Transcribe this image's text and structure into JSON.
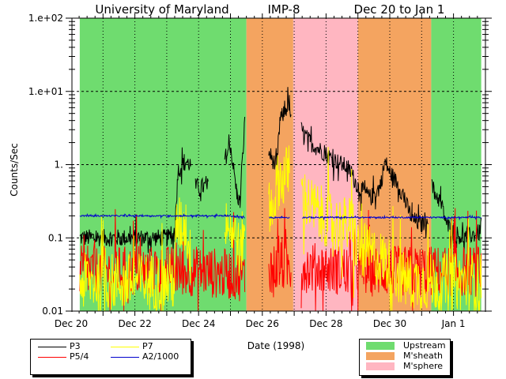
{
  "chart_data": {
    "type": "line",
    "title_parts": [
      "University of Maryland",
      "IMP-8",
      "Dec 20 to Jan 1"
    ],
    "xlabel": "Date (1998)",
    "ylabel": "Counts/Sec",
    "yscale": "log",
    "ylim": [
      0.01,
      100
    ],
    "y_tick_labels": [
      {
        "value": 100,
        "label": "1.e+02"
      },
      {
        "value": 10,
        "label": "1.e+01"
      },
      {
        "value": 1,
        "label": "1."
      },
      {
        "value": 0.1,
        "label": "0.1"
      },
      {
        "value": 0.01,
        "label": "0.01"
      }
    ],
    "xlim_days_from_dec20": [
      0,
      12.97
    ],
    "x_tick_labels": [
      {
        "day": 0,
        "label": "Dec 20"
      },
      {
        "day": 2,
        "label": "Dec 22"
      },
      {
        "day": 4,
        "label": "Dec 24"
      },
      {
        "day": 6,
        "label": "Dec 26"
      },
      {
        "day": 8,
        "label": "Dec 28"
      },
      {
        "day": 10,
        "label": "Dec 30"
      },
      {
        "day": 12,
        "label": "Jan 1"
      }
    ],
    "grid": true,
    "regions": [
      {
        "name": "Upstream",
        "start": 0.27,
        "end": 5.5,
        "color": "#6fdc6f"
      },
      {
        "name": "M'sheath",
        "start": 5.5,
        "end": 6.97,
        "color": "#f4a460"
      },
      {
        "name": "M'sphere",
        "start": 6.97,
        "end": 9.0,
        "color": "#ffb6c1"
      },
      {
        "name": "M'sheath",
        "start": 9.0,
        "end": 11.3,
        "color": "#f4a460"
      },
      {
        "name": "Upstream",
        "start": 11.3,
        "end": 12.87,
        "color": "#6fdc6f"
      }
    ],
    "region_legend": [
      {
        "label": "Upstream",
        "color": "#6fdc6f"
      },
      {
        "label": "M'sheath",
        "color": "#f4a460"
      },
      {
        "label": "M'sphere",
        "color": "#ffb6c1"
      }
    ],
    "series": [
      {
        "name": "P3",
        "color": "#000000",
        "noise": 0.12,
        "points": [
          [
            0.27,
            0.1
          ],
          [
            1,
            0.1
          ],
          [
            2,
            0.1
          ],
          [
            3,
            0.1
          ],
          [
            3.25,
            0.11
          ],
          [
            3.35,
            0.8
          ],
          [
            3.55,
            1.1
          ],
          [
            3.75,
            1.0
          ],
          [
            3.8,
            null
          ],
          [
            3.9,
            0.5
          ],
          [
            4.3,
            0.5
          ],
          [
            4.35,
            null
          ],
          [
            4.8,
            null
          ],
          [
            4.82,
            1.2
          ],
          [
            5.0,
            1.8
          ],
          [
            5.2,
            0.4
          ],
          [
            5.3,
            0.3
          ],
          [
            5.45,
            4.0
          ],
          [
            5.5,
            null
          ],
          [
            6.15,
            null
          ],
          [
            6.2,
            1.5
          ],
          [
            6.45,
            0.9
          ],
          [
            6.55,
            4.0
          ],
          [
            6.85,
            7.0
          ],
          [
            6.9,
            4.0
          ],
          [
            6.95,
            null
          ],
          [
            7.2,
            null
          ],
          [
            7.22,
            3.0
          ],
          [
            7.5,
            2.0
          ],
          [
            8.2,
            1.2
          ],
          [
            8.7,
            0.9
          ],
          [
            9.0,
            0.5
          ],
          [
            9.4,
            0.35
          ],
          [
            9.7,
            0.5
          ],
          [
            9.85,
            1.1
          ],
          [
            10.0,
            0.8
          ],
          [
            10.3,
            0.5
          ],
          [
            10.7,
            0.18
          ],
          [
            11.0,
            0.15
          ],
          [
            11.2,
            0.2
          ],
          [
            11.25,
            null
          ],
          [
            11.3,
            null
          ],
          [
            11.32,
            0.5
          ],
          [
            11.6,
            0.3
          ],
          [
            11.8,
            0.15
          ],
          [
            12.0,
            0.12
          ],
          [
            12.3,
            0.1
          ],
          [
            12.87,
            0.12
          ]
        ]
      },
      {
        "name": "P5/4",
        "color": "#ff0000",
        "noise": 0.35,
        "points": [
          [
            0.27,
            0.035
          ],
          [
            3,
            0.035
          ],
          [
            4.0,
            0.035
          ],
          [
            5.45,
            0.03
          ],
          [
            5.5,
            null
          ],
          [
            6.15,
            null
          ],
          [
            6.2,
            0.04
          ],
          [
            6.9,
            0.04
          ],
          [
            6.95,
            null
          ],
          [
            7.2,
            null
          ],
          [
            7.22,
            0.04
          ],
          [
            9.0,
            0.035
          ],
          [
            11.3,
            0.035
          ],
          [
            12.87,
            0.035
          ]
        ]
      },
      {
        "name": "P7",
        "color": "#ffff00",
        "noise": 0.4,
        "points": [
          [
            0.27,
            0.025
          ],
          [
            3.25,
            0.025
          ],
          [
            3.3,
            0.15
          ],
          [
            3.6,
            0.15
          ],
          [
            3.75,
            0.05
          ],
          [
            3.8,
            null
          ],
          [
            4.8,
            null
          ],
          [
            4.82,
            0.2
          ],
          [
            5.2,
            0.1
          ],
          [
            5.3,
            0.05
          ],
          [
            5.45,
            0.2
          ],
          [
            5.5,
            null
          ],
          [
            6.15,
            null
          ],
          [
            6.2,
            0.2
          ],
          [
            6.5,
            0.6
          ],
          [
            6.85,
            0.8
          ],
          [
            6.9,
            null
          ],
          [
            7.2,
            null
          ],
          [
            7.22,
            0.4
          ],
          [
            7.6,
            0.25
          ],
          [
            8.3,
            0.15
          ],
          [
            8.8,
            0.15
          ],
          [
            9.0,
            0.07
          ],
          [
            9.8,
            0.05
          ],
          [
            10.5,
            0.025
          ],
          [
            11.3,
            0.025
          ],
          [
            12.87,
            0.025
          ]
        ]
      },
      {
        "name": "A2/1000",
        "color": "#0000cc",
        "noise": 0.01,
        "points": [
          [
            0.27,
            0.2
          ],
          [
            4.9,
            0.2
          ],
          [
            5.45,
            0.19
          ],
          [
            5.5,
            null
          ],
          [
            6.2,
            null
          ],
          [
            6.22,
            0.19
          ],
          [
            6.85,
            0.19
          ],
          [
            6.9,
            null
          ],
          [
            7.22,
            null
          ],
          [
            7.25,
            0.19
          ],
          [
            12.87,
            0.19
          ]
        ]
      }
    ],
    "legend": [
      {
        "label": "P3",
        "color": "#000000"
      },
      {
        "label": "P7",
        "color": "#ffff00"
      },
      {
        "label": "P5/4",
        "color": "#ff0000"
      },
      {
        "label": "A2/1000",
        "color": "#0000cc"
      }
    ]
  }
}
